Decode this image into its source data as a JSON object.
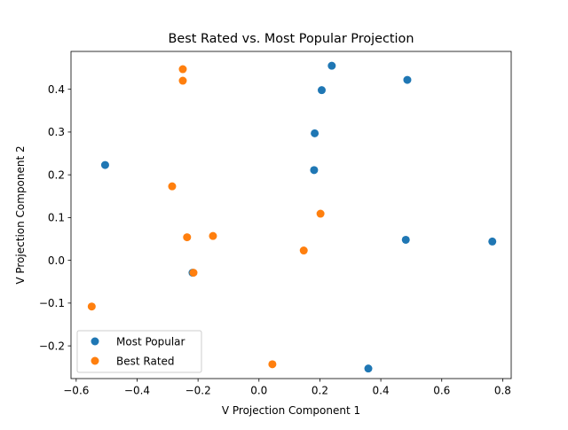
{
  "chart_data": {
    "type": "scatter",
    "title": "Best Rated vs. Most Popular Projection",
    "xlabel": "V Projection Component 1",
    "ylabel": "V Projection Component 2",
    "xlim": [
      -0.617,
      0.828
    ],
    "ylim": [
      -0.2765,
      0.4885
    ],
    "xticks": [
      -0.6,
      -0.4,
      -0.2,
      0.0,
      0.2,
      0.4,
      0.6,
      0.8
    ],
    "xtick_labels": [
      "−0.6",
      "−0.4",
      "−0.2",
      "0.0",
      "0.2",
      "0.4",
      "0.6",
      "0.8"
    ],
    "yticks": [
      -0.2,
      -0.1,
      0.0,
      0.1,
      0.2,
      0.3,
      0.4
    ],
    "ytick_labels": [
      "−0.2",
      "−0.1",
      "0.0",
      "0.1",
      "0.2",
      "0.3",
      "0.4"
    ],
    "grid": false,
    "legend_position": "lower-left",
    "series": [
      {
        "name": "Most Popular",
        "color": "#1f77b4",
        "points": [
          [
            -0.505,
            0.223
          ],
          [
            -0.218,
            -0.029
          ],
          [
            0.181,
            0.211
          ],
          [
            0.183,
            0.297
          ],
          [
            0.206,
            0.398
          ],
          [
            0.239,
            0.455
          ],
          [
            0.359,
            -0.253
          ],
          [
            0.482,
            0.048
          ],
          [
            0.487,
            0.422
          ],
          [
            0.766,
            0.044
          ]
        ]
      },
      {
        "name": "Best Rated",
        "color": "#ff7f0e",
        "points": [
          [
            -0.549,
            -0.108
          ],
          [
            -0.285,
            0.173
          ],
          [
            -0.25,
            0.447
          ],
          [
            -0.25,
            0.42
          ],
          [
            -0.236,
            0.054
          ],
          [
            -0.215,
            -0.029
          ],
          [
            -0.151,
            0.057
          ],
          [
            0.044,
            -0.243
          ],
          [
            0.147,
            0.023
          ],
          [
            0.202,
            0.109
          ]
        ]
      }
    ]
  }
}
